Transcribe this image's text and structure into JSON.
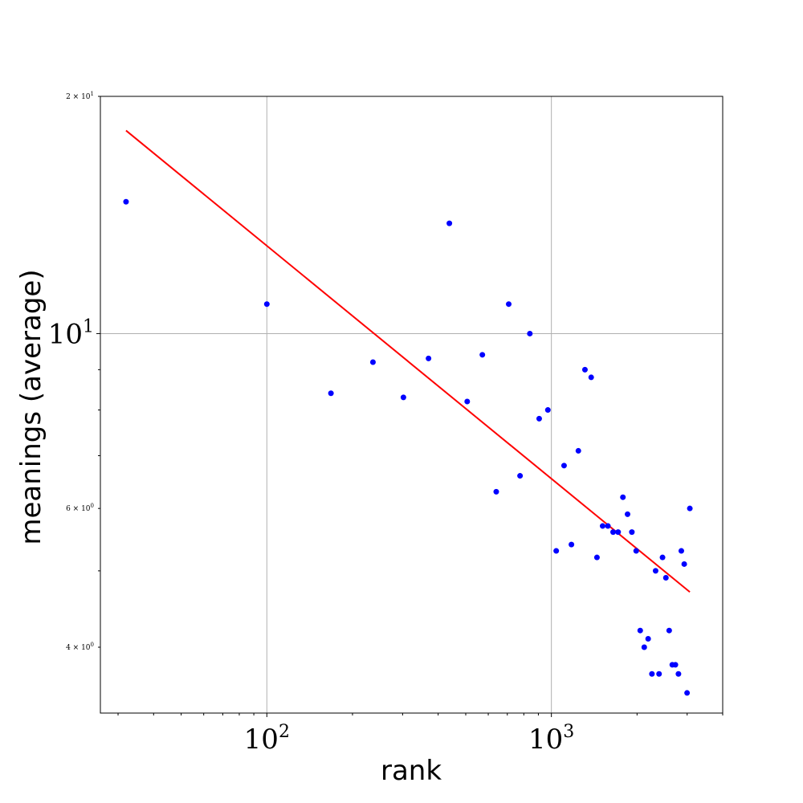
{
  "chart_data": {
    "type": "scatter",
    "title": "",
    "xlabel": "rank",
    "ylabel": "meanings (average)",
    "x_scale": "log",
    "y_scale": "log",
    "xlim": [
      26,
      4000
    ],
    "ylim": [
      3.3,
      20
    ],
    "grid": true,
    "x_ticks": [
      {
        "value": 100,
        "base": "10",
        "exp": "2"
      },
      {
        "value": 1000,
        "base": "10",
        "exp": "3"
      }
    ],
    "y_ticks_major": [
      {
        "value": 10,
        "base": "10",
        "exp": "1"
      }
    ],
    "y_ticks_minor_labeled": [
      {
        "value": 20,
        "mant": "2",
        "base": "10",
        "exp": "1"
      },
      {
        "value": 6,
        "mant": "6",
        "base": "10",
        "exp": "0"
      },
      {
        "value": 4,
        "mant": "4",
        "base": "10",
        "exp": "0"
      }
    ],
    "series": [
      {
        "kind": "scatter",
        "color": "#0000ff",
        "points": [
          [
            32,
            14.7
          ],
          [
            100,
            10.9
          ],
          [
            168,
            8.4
          ],
          [
            236,
            9.2
          ],
          [
            302,
            8.3
          ],
          [
            370,
            9.3
          ],
          [
            438,
            13.8
          ],
          [
            506,
            8.2
          ],
          [
            572,
            9.4
          ],
          [
            640,
            6.3
          ],
          [
            708,
            10.9
          ],
          [
            776,
            6.6
          ],
          [
            840,
            10.0
          ],
          [
            906,
            7.8
          ],
          [
            972,
            8.0
          ],
          [
            1040,
            5.3
          ],
          [
            1108,
            6.8
          ],
          [
            1176,
            5.4
          ],
          [
            1244,
            7.1
          ],
          [
            1312,
            9.0
          ],
          [
            1380,
            8.8
          ],
          [
            1446,
            5.2
          ],
          [
            1514,
            5.7
          ],
          [
            1580,
            5.7
          ],
          [
            1648,
            5.6
          ],
          [
            1716,
            5.6
          ],
          [
            1784,
            6.2
          ],
          [
            1852,
            5.9
          ],
          [
            1918,
            5.6
          ],
          [
            1986,
            5.3
          ],
          [
            2052,
            4.2
          ],
          [
            2120,
            4.0
          ],
          [
            2188,
            4.1
          ],
          [
            2256,
            3.7
          ],
          [
            2324,
            5.0
          ],
          [
            2390,
            3.7
          ],
          [
            2458,
            5.2
          ],
          [
            2526,
            4.9
          ],
          [
            2594,
            4.2
          ],
          [
            2660,
            3.8
          ],
          [
            2728,
            3.8
          ],
          [
            2796,
            3.7
          ],
          [
            2862,
            5.3
          ],
          [
            2930,
            5.1
          ],
          [
            2998,
            3.5
          ],
          [
            3066,
            6.0
          ]
        ]
      },
      {
        "kind": "line",
        "color": "#ff0000",
        "points": [
          [
            32,
            18.1
          ],
          [
            3066,
            4.7
          ]
        ]
      }
    ]
  }
}
